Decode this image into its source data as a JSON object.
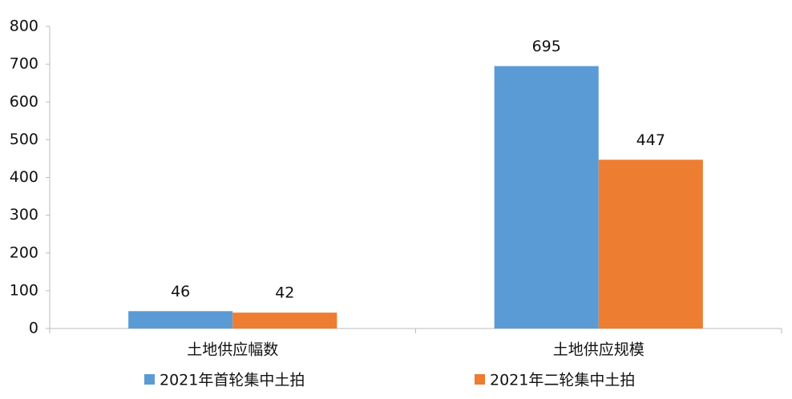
{
  "chart_data": {
    "type": "bar",
    "categories": [
      "土地供应幅数",
      "土地供应规模"
    ],
    "series": [
      {
        "name": "2021年首轮集中土拍",
        "color": "#5b9bd5",
        "values": [
          46,
          695
        ]
      },
      {
        "name": "2021年二轮集中土拍",
        "color": "#ed7d31",
        "values": [
          42,
          447
        ]
      }
    ],
    "ylim": [
      0,
      800
    ],
    "yticks": [
      0,
      100,
      200,
      300,
      400,
      500,
      600,
      700,
      800
    ],
    "grid": false,
    "legend": "bottom"
  }
}
